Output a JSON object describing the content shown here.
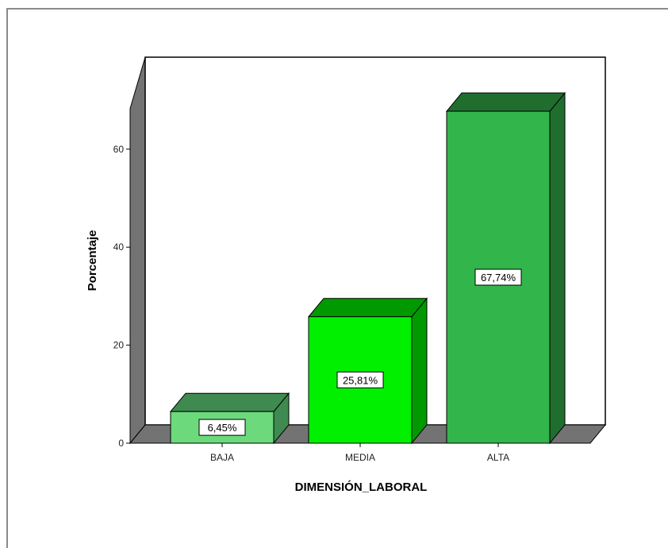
{
  "chart_data": {
    "type": "bar",
    "style": "3d",
    "categories": [
      "BAJA",
      "MEDIA",
      "ALTA"
    ],
    "values": [
      6.45,
      25.81,
      67.74
    ],
    "data_labels": [
      "6,45%",
      "25,81%",
      "67,74%"
    ],
    "xlabel": "DIMENSIÓN_LABORAL",
    "ylabel": "Porcentaje",
    "yticks": [
      0,
      20,
      40,
      60
    ],
    "ylim": [
      0,
      72
    ],
    "grid": false,
    "legend": "none",
    "colors": {
      "bars": [
        {
          "front": "#6cd97c",
          "top": "#3f8a50",
          "side": "#3f8a50"
        },
        {
          "front": "#00f000",
          "top": "#009a00",
          "side": "#009a00"
        },
        {
          "front": "#32b54a",
          "top": "#1f6e2e",
          "side": "#1f6e2e"
        }
      ],
      "wall": "#ffffff",
      "wall_side": "#737373",
      "floor": "#737373",
      "outline": "#000000"
    }
  }
}
